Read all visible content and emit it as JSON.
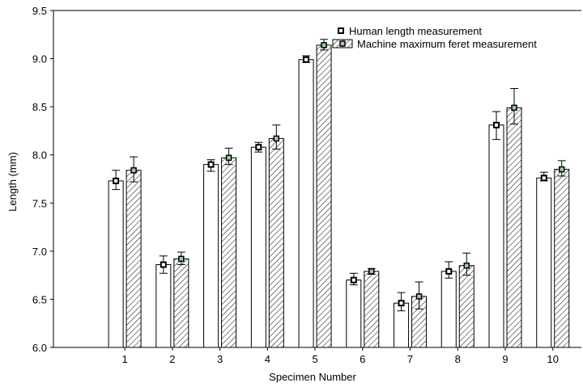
{
  "chart_data": {
    "type": "bar",
    "title": "",
    "xlabel": "Specimen Number",
    "ylabel": "Length (mm)",
    "ylim": [
      6.0,
      9.5
    ],
    "xlim": [
      -0.5,
      10.6
    ],
    "yticks": [
      "6.0",
      "6.5",
      "7.0",
      "7.5",
      "8.0",
      "8.5",
      "9.0",
      "9.5"
    ],
    "categories": [
      "1",
      "2",
      "3",
      "4",
      "5",
      "6",
      "7",
      "8",
      "9",
      "10"
    ],
    "series": [
      {
        "name": "Human length measurement",
        "pattern": "none",
        "values": [
          7.73,
          6.86,
          7.9,
          8.08,
          8.99,
          6.7,
          6.46,
          6.79,
          8.31,
          7.76
        ],
        "error_low": [
          7.64,
          6.77,
          7.83,
          8.03,
          8.96,
          6.65,
          6.38,
          6.72,
          8.16,
          7.73
        ],
        "error_high": [
          7.84,
          6.95,
          7.95,
          8.13,
          9.03,
          6.77,
          6.57,
          6.89,
          8.45,
          7.82
        ]
      },
      {
        "name": "Machine maximum feret measurement",
        "pattern": "hatched",
        "values": [
          7.84,
          6.92,
          7.97,
          8.17,
          9.14,
          6.79,
          6.53,
          6.85,
          8.49,
          7.85
        ],
        "error_low": [
          7.72,
          6.86,
          7.9,
          8.06,
          9.09,
          6.76,
          6.4,
          6.75,
          8.32,
          7.78
        ],
        "error_high": [
          7.98,
          6.99,
          8.07,
          8.31,
          9.2,
          6.82,
          6.68,
          6.98,
          8.69,
          7.94
        ]
      }
    ],
    "legend": {
      "placement": "top-right"
    },
    "grid": false,
    "colors": {
      "bar_fill": "#ffffff",
      "stroke": "#000000",
      "marker_fill": "#9ad29a"
    }
  }
}
